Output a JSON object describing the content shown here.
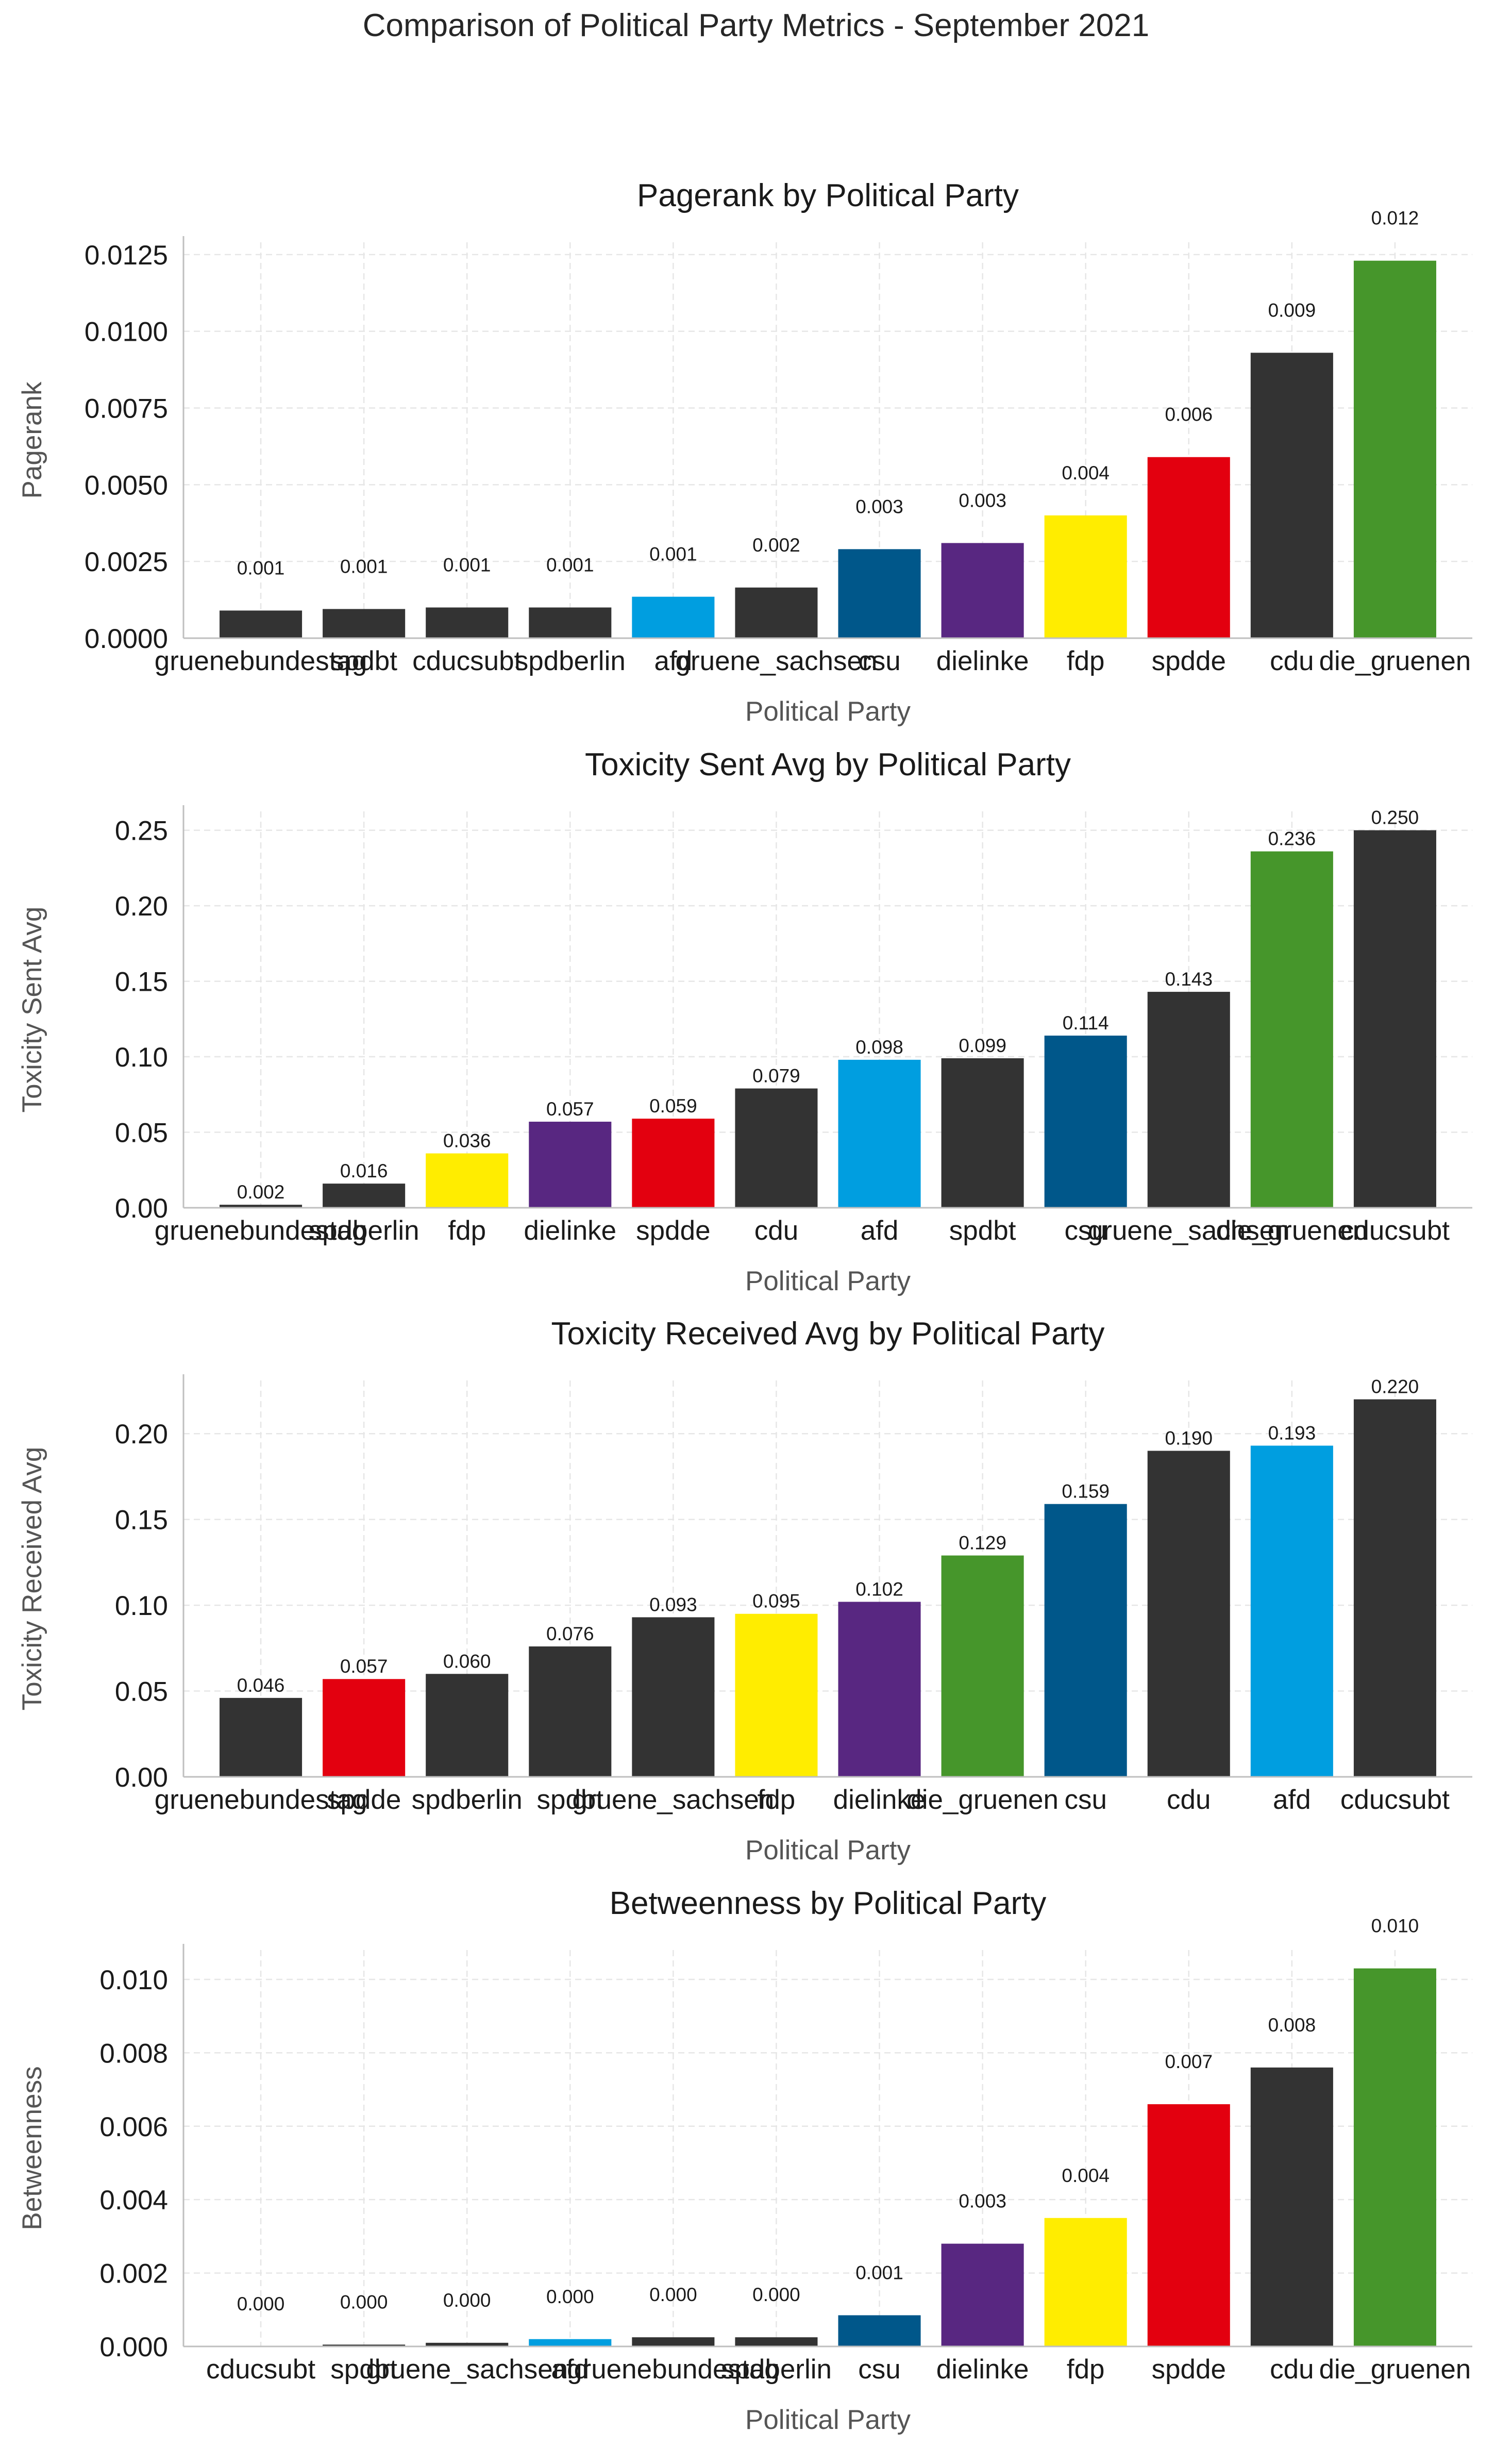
{
  "suptitle": "Comparison of Political Party Metrics - September 2021",
  "colors": {
    "dark": "#333333",
    "afd": "#009EE0",
    "fdp": "#FFED00",
    "dielinke": "#582781",
    "spdde": "#E3000F",
    "csu": "#00578A",
    "die_gruenen": "#46962B"
  },
  "chart_data": [
    {
      "type": "bar",
      "title": "Pagerank by Political Party",
      "xlabel": "Political Party",
      "ylabel": "Pagerank",
      "ylim": [
        0,
        0.0129
      ],
      "yticks": [
        "0.0000",
        "0.0025",
        "0.0050",
        "0.0075",
        "0.0100",
        "0.0125"
      ],
      "ytick_values": [
        0,
        0.0025,
        0.005,
        0.0075,
        0.01,
        0.0125
      ],
      "grid": true,
      "categories": [
        "gruenebundestag",
        "spdbt",
        "cducsubt",
        "spdberlin",
        "afd",
        "gruene_sachsen",
        "csu",
        "dielinke",
        "fdp",
        "spdde",
        "cdu",
        "die_gruenen"
      ],
      "values": [
        0.0009,
        0.00095,
        0.001,
        0.001,
        0.00135,
        0.00165,
        0.0029,
        0.0031,
        0.004,
        0.0059,
        0.0093,
        0.0123
      ],
      "labels": [
        "0.001",
        "0.001",
        "0.001",
        "0.001",
        "0.001",
        "0.002",
        "0.003",
        "0.003",
        "0.004",
        "0.006",
        "0.009",
        "0.012"
      ],
      "colors": [
        "#333333",
        "#333333",
        "#333333",
        "#333333",
        "#009EE0",
        "#333333",
        "#00578A",
        "#582781",
        "#FFED00",
        "#E3000F",
        "#333333",
        "#46962B"
      ]
    },
    {
      "type": "bar",
      "title": "Toxicity Sent Avg by Political Party",
      "xlabel": "Political Party",
      "ylabel": "Toxicity Sent Avg",
      "ylim": [
        0,
        0.2625
      ],
      "yticks": [
        "0.00",
        "0.05",
        "0.10",
        "0.15",
        "0.20",
        "0.25"
      ],
      "ytick_values": [
        0,
        0.05,
        0.1,
        0.15,
        0.2,
        0.25
      ],
      "grid": true,
      "categories": [
        "gruenebundestag",
        "spdberlin",
        "fdp",
        "dielinke",
        "spdde",
        "cdu",
        "afd",
        "spdbt",
        "csu",
        "gruene_sachsen",
        "die_gruenen",
        "cducsubt"
      ],
      "values": [
        0.002,
        0.016,
        0.036,
        0.057,
        0.059,
        0.079,
        0.098,
        0.099,
        0.114,
        0.143,
        0.236,
        0.25
      ],
      "labels": [
        "0.002",
        "0.016",
        "0.036",
        "0.057",
        "0.059",
        "0.079",
        "0.098",
        "0.099",
        "0.114",
        "0.143",
        "0.236",
        "0.250"
      ],
      "colors": [
        "#333333",
        "#333333",
        "#FFED00",
        "#582781",
        "#E3000F",
        "#333333",
        "#009EE0",
        "#333333",
        "#00578A",
        "#333333",
        "#46962B",
        "#333333"
      ]
    },
    {
      "type": "bar",
      "title": "Toxicity Received Avg by Political Party",
      "xlabel": "Political Party",
      "ylabel": "Toxicity Received Avg",
      "ylim": [
        0,
        0.231
      ],
      "yticks": [
        "0.00",
        "0.05",
        "0.10",
        "0.15",
        "0.20"
      ],
      "ytick_values": [
        0,
        0.05,
        0.1,
        0.15,
        0.2
      ],
      "grid": true,
      "categories": [
        "gruenebundestag",
        "spdde",
        "spdberlin",
        "spdbt",
        "gruene_sachsen",
        "fdp",
        "dielinke",
        "die_gruenen",
        "csu",
        "cdu",
        "afd",
        "cducsubt"
      ],
      "values": [
        0.046,
        0.057,
        0.06,
        0.076,
        0.093,
        0.095,
        0.102,
        0.129,
        0.159,
        0.19,
        0.193,
        0.22
      ],
      "labels": [
        "0.046",
        "0.057",
        "0.060",
        "0.076",
        "0.093",
        "0.095",
        "0.102",
        "0.129",
        "0.159",
        "0.190",
        "0.193",
        "0.220"
      ],
      "colors": [
        "#333333",
        "#E3000F",
        "#333333",
        "#333333",
        "#333333",
        "#FFED00",
        "#582781",
        "#46962B",
        "#00578A",
        "#333333",
        "#009EE0",
        "#333333"
      ]
    },
    {
      "type": "bar",
      "title": "Betweenness by Political Party",
      "xlabel": "Political Party",
      "ylabel": "Betweenness",
      "ylim": [
        0,
        0.0108
      ],
      "yticks": [
        "0.000",
        "0.002",
        "0.004",
        "0.006",
        "0.008",
        "0.010"
      ],
      "ytick_values": [
        0,
        0.002,
        0.004,
        0.006,
        0.008,
        0.01
      ],
      "grid": true,
      "categories": [
        "cducsubt",
        "spdbt",
        "gruene_sachsen",
        "afd",
        "gruenebundestag",
        "spdberlin",
        "csu",
        "dielinke",
        "fdp",
        "spdde",
        "cdu",
        "die_gruenen"
      ],
      "values": [
        0.0,
        5e-05,
        0.0001,
        0.0002,
        0.00025,
        0.00025,
        0.00085,
        0.0028,
        0.0035,
        0.0066,
        0.0076,
        0.0103
      ],
      "labels": [
        "0.000",
        "0.000",
        "0.000",
        "0.000",
        "0.000",
        "0.000",
        "0.001",
        "0.003",
        "0.004",
        "0.007",
        "0.008",
        "0.010"
      ],
      "colors": [
        "#333333",
        "#333333",
        "#333333",
        "#009EE0",
        "#333333",
        "#333333",
        "#00578A",
        "#582781",
        "#FFED00",
        "#E3000F",
        "#333333",
        "#46962B"
      ]
    }
  ]
}
